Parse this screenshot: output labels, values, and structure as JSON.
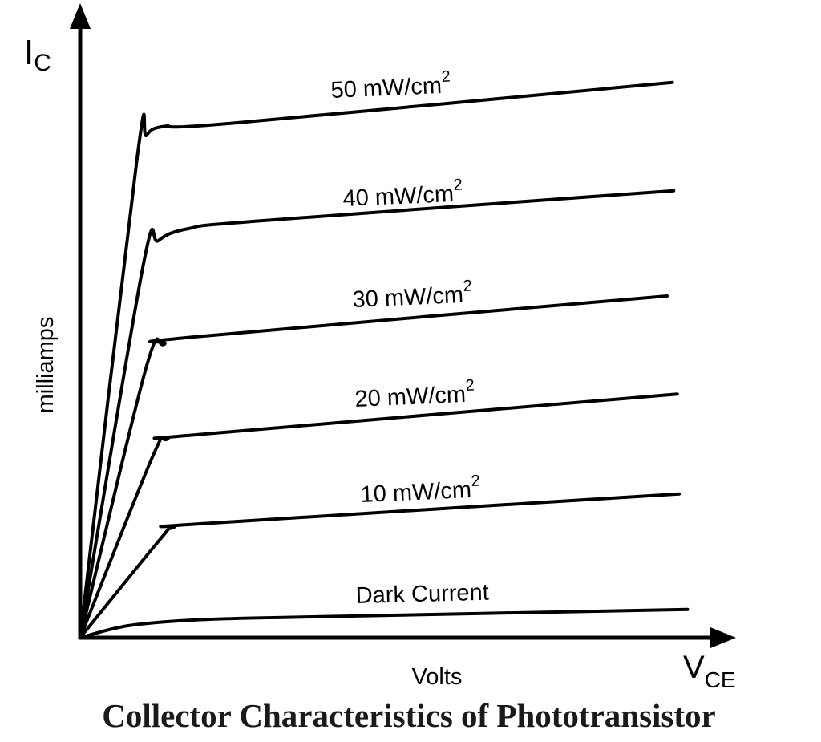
{
  "chart_data": {
    "type": "line",
    "title": "Collector Characteristics of Phototransistor",
    "xlabel": "Volts",
    "x_axis_symbol": {
      "main": "V",
      "sub": "CE"
    },
    "ylabel": "milliamps",
    "y_axis_symbol": {
      "main": "I",
      "sub": "C"
    },
    "grid": false,
    "ticks": false,
    "xlim": [
      0,
      110
    ],
    "ylim": [
      0,
      104
    ],
    "line_color": "#000000",
    "series": [
      {
        "name": "50 mW/cm",
        "sup": "2",
        "points": [
          [
            0,
            0
          ],
          [
            9.5,
            80
          ],
          [
            11,
            83.5
          ],
          [
            14,
            85
          ],
          [
            25,
            85.5
          ],
          [
            98.5,
            92.3
          ]
        ]
      },
      {
        "name": "40 mW/cm",
        "sup": "2",
        "points": [
          [
            0,
            0
          ],
          [
            10.5,
            62
          ],
          [
            13,
            66
          ],
          [
            18,
            68
          ],
          [
            30,
            69.3
          ],
          [
            98.7,
            74.3
          ]
        ]
      },
      {
        "name": "30 mW/cm",
        "sup": "2",
        "points": [
          [
            0,
            0
          ],
          [
            11,
            45
          ],
          [
            14,
            48.8
          ],
          [
            19,
            50
          ],
          [
            97.6,
            56.8
          ]
        ]
      },
      {
        "name": "20 mW/cm",
        "sup": "2",
        "points": [
          [
            0,
            0
          ],
          [
            12,
            30
          ],
          [
            14.5,
            33
          ],
          [
            20,
            33.8
          ],
          [
            99.3,
            40.5
          ]
        ]
      },
      {
        "name": "10 mW/cm",
        "sup": "2",
        "points": [
          [
            0,
            0
          ],
          [
            13,
            16
          ],
          [
            15.5,
            18.3
          ],
          [
            21,
            19
          ],
          [
            99.6,
            23.9
          ]
        ]
      },
      {
        "name": "Dark Current",
        "sup": "",
        "points": [
          [
            0,
            0
          ],
          [
            8,
            2
          ],
          [
            20,
            3
          ],
          [
            40,
            3.5
          ],
          [
            101,
            4.7
          ]
        ]
      }
    ]
  }
}
